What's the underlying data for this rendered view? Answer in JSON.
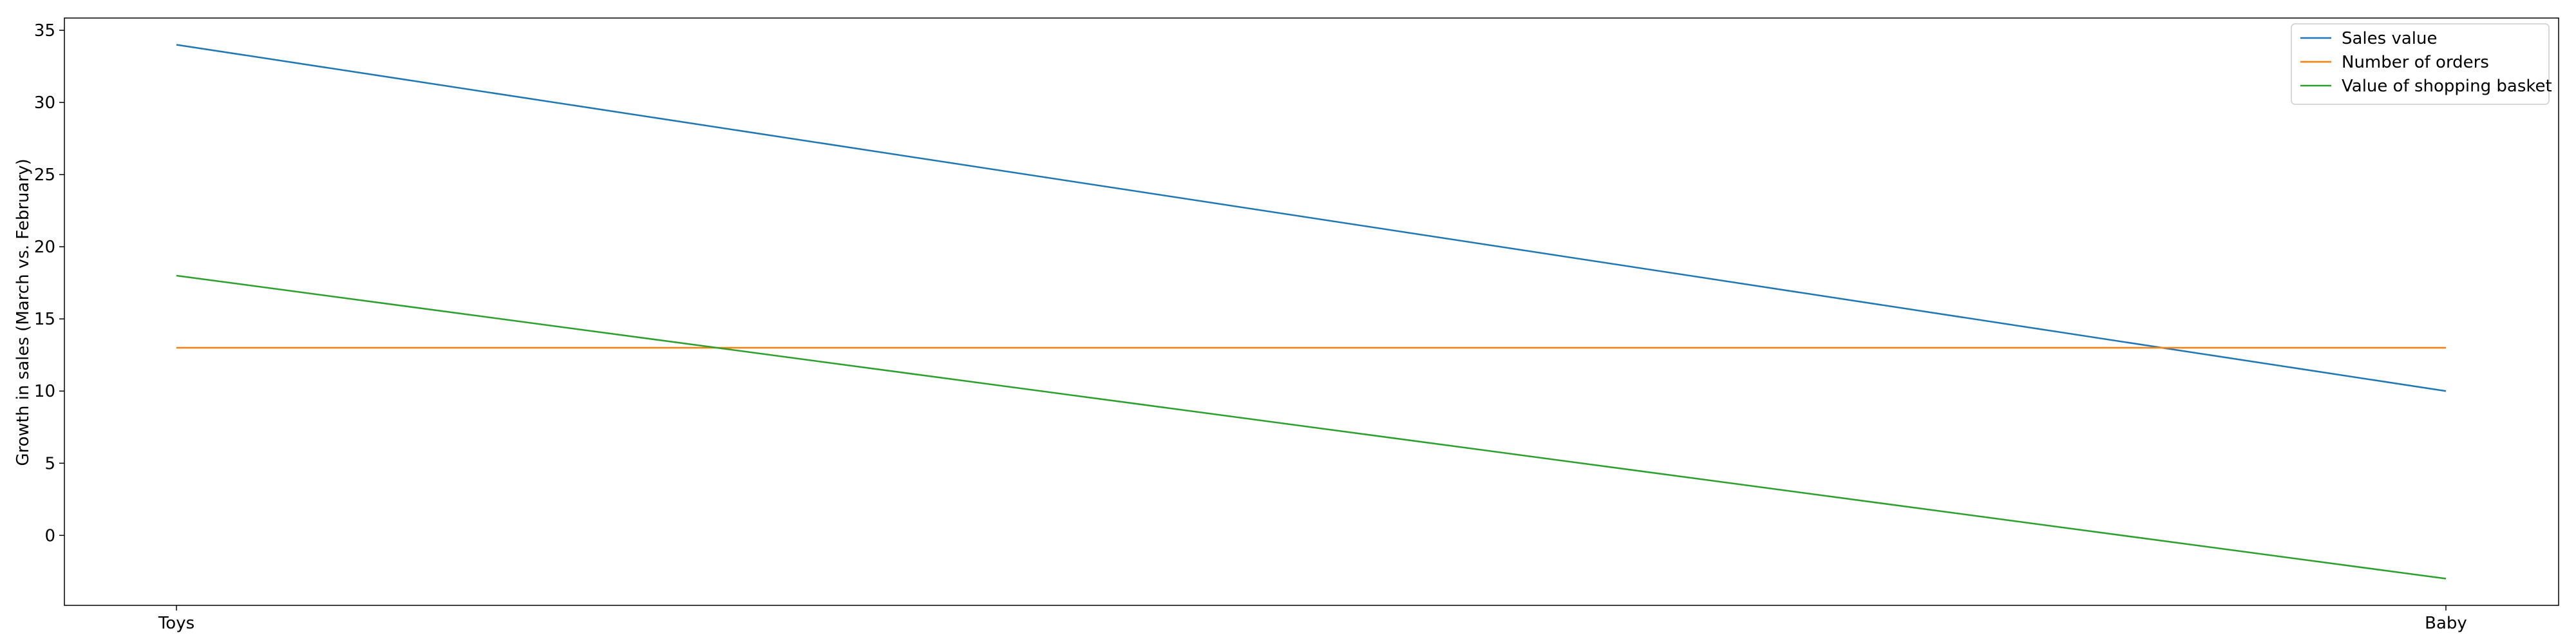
{
  "chart_data": {
    "type": "line",
    "title": "",
    "xlabel": "",
    "ylabel": "Growth in sales (March vs. February)",
    "categories": [
      "Toys",
      "Baby"
    ],
    "series": [
      {
        "name": "Sales value",
        "values": [
          34,
          10
        ],
        "color": "#1f77b4"
      },
      {
        "name": "Number of orders",
        "values": [
          13,
          13
        ],
        "color": "#ff7f0e"
      },
      {
        "name": "Value of shopping basket",
        "values": [
          18,
          -3
        ],
        "color": "#2ca02c"
      }
    ],
    "ylim": [
      -4.85,
      35.85
    ],
    "yticks": [
      0,
      5,
      10,
      15,
      20,
      25,
      30,
      35
    ],
    "grid": false,
    "legend_position": "top-right"
  }
}
